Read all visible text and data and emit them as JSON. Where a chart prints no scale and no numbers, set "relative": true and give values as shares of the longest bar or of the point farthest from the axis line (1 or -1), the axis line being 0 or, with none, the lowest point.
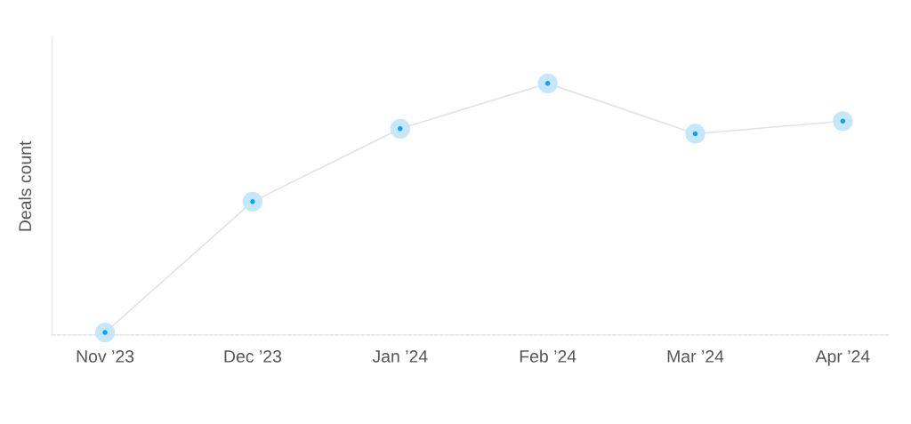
{
  "chart_data": {
    "type": "line",
    "ylabel": "Deals count",
    "relative": true,
    "categories": [
      "Nov ’23",
      "Dec ’23",
      "Jan ’24",
      "Feb ’24",
      "Mar ’24",
      "Apr ’24"
    ],
    "series": [
      {
        "color": "#0ba4f0",
        "values": [
          0.01,
          0.53,
          0.82,
          1,
          0.8,
          0.85
        ]
      }
    ],
    "marker": "circle",
    "line_style": "solid",
    "grid": false
  }
}
